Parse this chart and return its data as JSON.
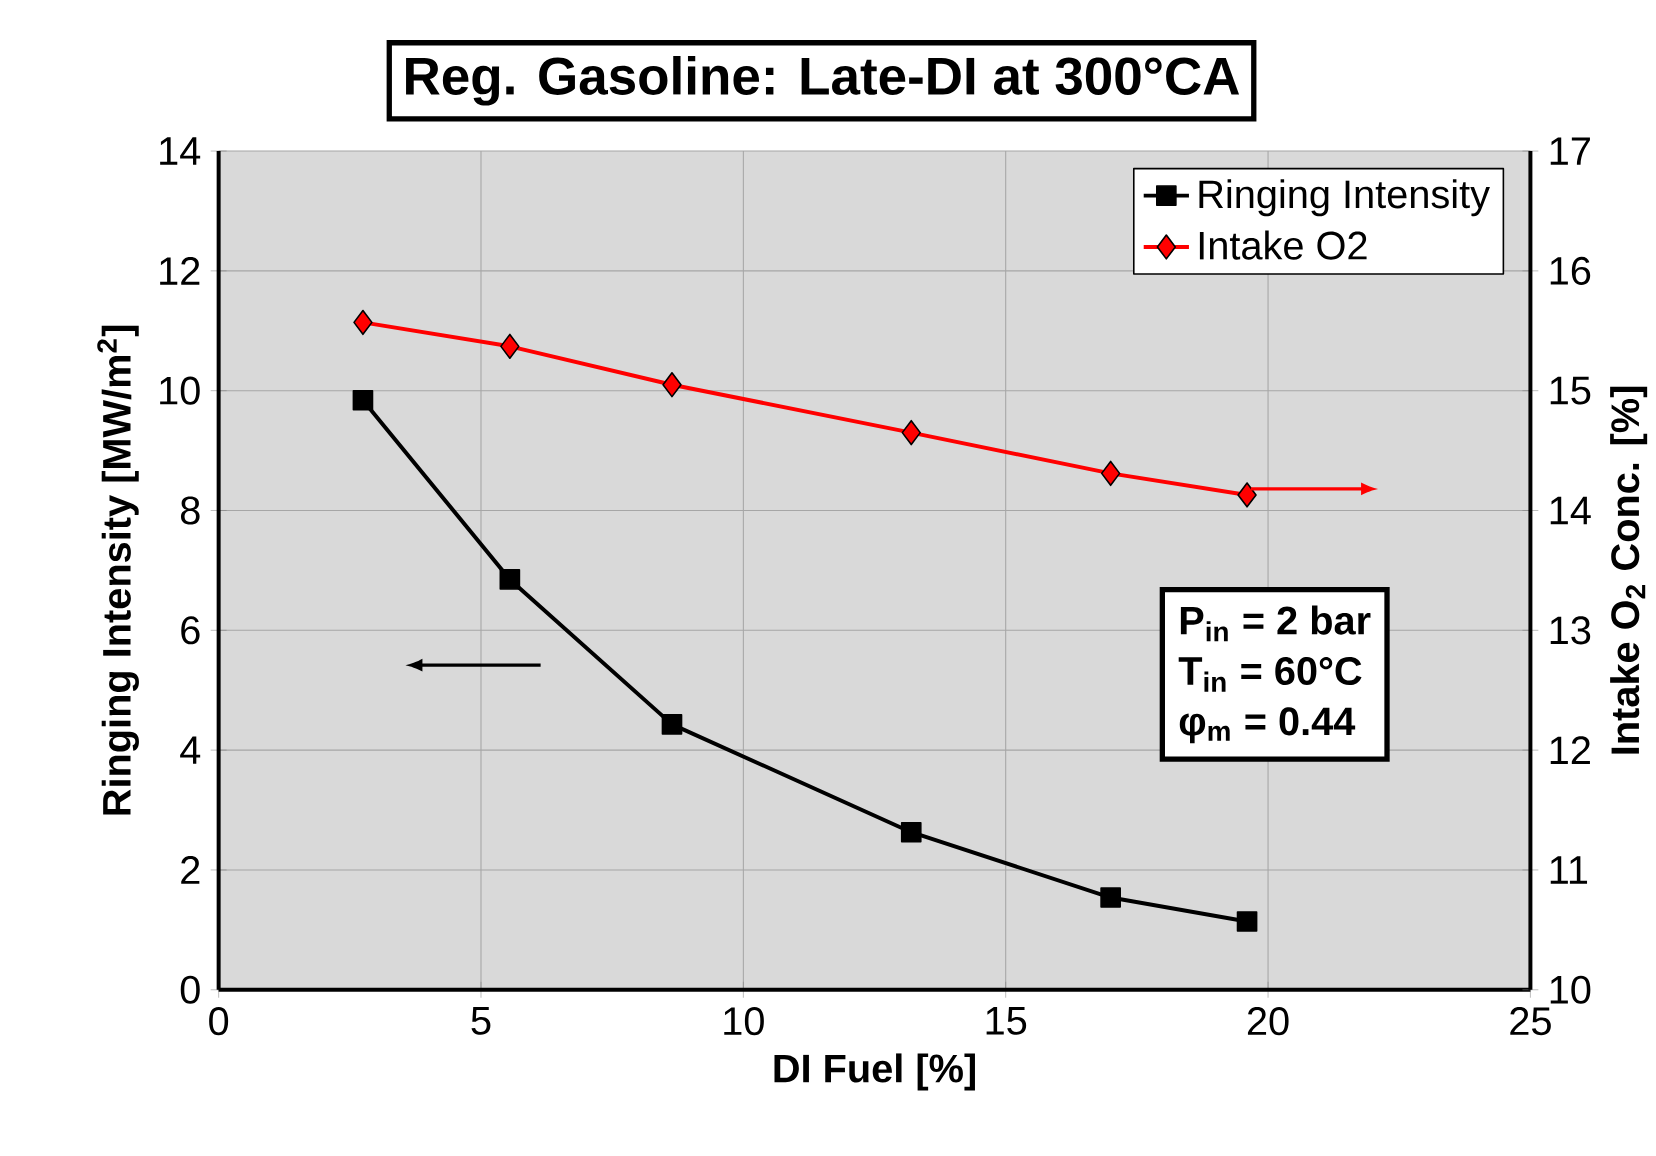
{
  "chart_data": {
    "type": "line",
    "title": "Reg. Gasoline: Late-DI at 300°CA",
    "xlabel": "DI Fuel [%]",
    "ylabel": "Ringing Intensity [MW/m$^{2}$]",
    "y2label": "Intake O$_{2}$ Conc. [%]",
    "x": [
      2.75,
      5.55,
      8.64,
      13.2,
      17.0,
      19.6
    ],
    "series": [
      {
        "name": "Ringing Intensity",
        "color": "#000000",
        "marker": "square",
        "values": [
          9.84,
          6.85,
          4.43,
          2.63,
          1.54,
          1.14
        ]
      },
      {
        "name": "Intake O2",
        "color": "#ff0000",
        "marker": "diamond",
        "axis": "y2",
        "values": [
          15.57,
          15.37,
          15.05,
          14.65,
          14.31,
          14.13
        ]
      }
    ],
    "xlim": [
      0,
      25
    ],
    "xticks": [
      0,
      5,
      10,
      15,
      20,
      25
    ],
    "ylim": [
      0,
      14
    ],
    "yticks": [
      0,
      2,
      4,
      6,
      8,
      10,
      12,
      14
    ],
    "y2lim": [
      10,
      17
    ],
    "y2ticks": [
      10,
      11,
      12,
      13,
      14,
      15,
      16,
      17
    ],
    "annotations": [
      "P$_{in}$ = 2 bar",
      "T$_{in}$ = 60°C",
      "φ$_{m}$ = 0.44"
    ],
    "grid": true,
    "legend": "top right",
    "line_style": "solid"
  }
}
